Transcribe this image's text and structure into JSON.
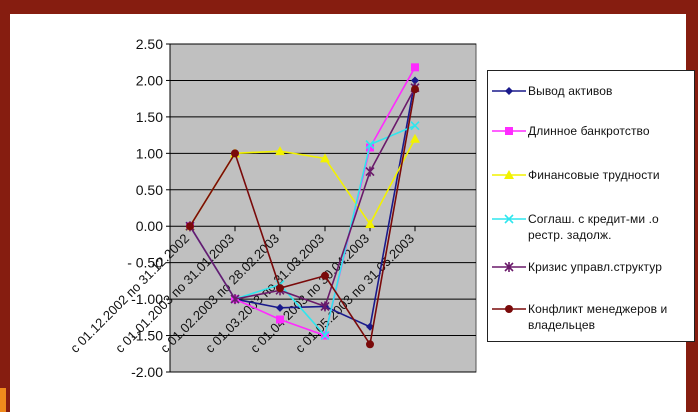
{
  "chart_data": {
    "type": "line",
    "categories": [
      "с 01.12.2002 по 31.12.2002",
      "с 01.01.2003 по 31.01.2003",
      "с 01.02.2003 по 28.02.2003",
      "с 01.03.2003 по 31.03.2003",
      "с 01.04.2003 по 30.04.2003",
      "с 01.05.2003 по 31.05.2003"
    ],
    "ylim": [
      -2.0,
      2.5
    ],
    "yticks": [
      "2.50",
      "2.00",
      "1.50",
      "1.00",
      "0.50",
      "0.00",
      "- 0.50",
      "-1.00",
      "-1.50",
      "-2.00"
    ],
    "grid": true,
    "plot_background": "#c0c0c0",
    "legend_position": "right",
    "series": [
      {
        "name": "Вывод активов",
        "color": "#1a1a8c",
        "marker": "diamond",
        "values": [
          0.0,
          -1.0,
          -1.12,
          -1.1,
          -1.38,
          2.0
        ]
      },
      {
        "name": "Длинное банкротство",
        "color": "#ff2bff",
        "marker": "square",
        "values": [
          0.0,
          -1.0,
          -1.28,
          -1.5,
          1.08,
          2.18
        ]
      },
      {
        "name": "Финансовые трудности",
        "color": "#f2f200",
        "marker": "triangle",
        "values": [
          0.0,
          1.0,
          1.03,
          0.93,
          0.03,
          1.2
        ]
      },
      {
        "name": "Соглаш. с кредит-ми .о рестр. задолж.",
        "color": "#2ee6ee",
        "marker": "x",
        "values": [
          0.0,
          -1.0,
          -0.8,
          -1.5,
          1.12,
          1.38
        ]
      },
      {
        "name": "Кризис управл.структур",
        "color": "#6a1a6a",
        "marker": "star",
        "values": [
          0.0,
          -1.0,
          -0.88,
          -1.1,
          0.75,
          1.9
        ]
      },
      {
        "name": "Конфликт менеджеров и владельцев",
        "color": "#7a0a0a",
        "marker": "circle",
        "values": [
          0.0,
          1.0,
          -0.85,
          -0.68,
          -1.62,
          1.88
        ]
      }
    ]
  }
}
